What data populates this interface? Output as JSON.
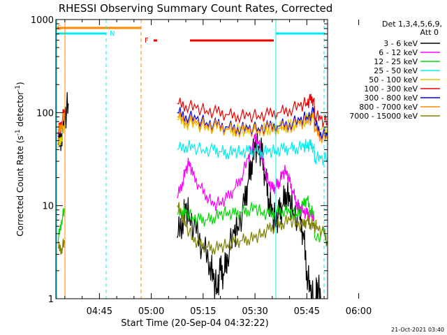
{
  "chart_data": {
    "type": "line",
    "title": "RHESSI Observing Summary Count Rates, Corrected",
    "xlabel": "Start Time (20-Sep-04 04:32:22)",
    "ylabel_main": "Corrected Count Rate (s",
    "ylabel_sup1": "-1",
    "ylabel_mid": " detector",
    "ylabel_sup2": "-1",
    "ylabel_end": ")",
    "footer": "21-Oct-2021 03:40",
    "xlim_min": [
      32.4,
      111
    ],
    "ylim": [
      1,
      1000
    ],
    "y_scale": "log",
    "x_ticks": [
      {
        "min": 45,
        "label": "04:45"
      },
      {
        "min": 60,
        "label": "05:00"
      },
      {
        "min": 75,
        "label": "05:15"
      },
      {
        "min": 90,
        "label": "05:30"
      },
      {
        "min": 105,
        "label": "05:45"
      },
      {
        "min": 120,
        "label": "06:00"
      }
    ],
    "y_ticks": [
      {
        "value": 1,
        "label": "1"
      },
      {
        "value": 10,
        "label": "10"
      },
      {
        "value": 100,
        "label": "100"
      },
      {
        "value": 1000,
        "label": "1000"
      }
    ],
    "legend": {
      "header1": "Det 1,3,4,5,6,9,",
      "header2": "Att 0",
      "items": [
        {
          "label": "3 - 6 keV",
          "color": "#000000"
        },
        {
          "label": "6 - 12 keV",
          "color": "#ff00ff"
        },
        {
          "label": "12 - 25 keV",
          "color": "#00dd00"
        },
        {
          "label": "25 - 50 keV",
          "color": "#00eeee"
        },
        {
          "label": "50 - 100 keV",
          "color": "#ddcc00"
        },
        {
          "label": "100 - 300 keV",
          "color": "#ee0000"
        },
        {
          "label": "300 - 800 keV",
          "color": "#0000ee"
        },
        {
          "label": "800 - 7000 keV",
          "color": "#ff8800"
        },
        {
          "label": "7000 - 15000 keV",
          "color": "#808000"
        }
      ]
    },
    "flags": [
      {
        "label": "S",
        "color": "#ff8800"
      },
      {
        "label": "N",
        "color": "#00eeee"
      },
      {
        "label": "F",
        "color": "#ee0000"
      }
    ],
    "series": [
      {
        "name": "3 - 6 keV",
        "color": "#000000",
        "segments": [
          [
            [
              33,
              45
            ],
            [
              34,
              60
            ],
            [
              35,
              90
            ],
            [
              36,
              125
            ]
          ],
          [
            [
              67.5,
              4.5
            ],
            [
              69,
              7
            ],
            [
              70,
              9
            ],
            [
              71,
              8
            ],
            [
              73,
              5
            ],
            [
              75,
              3.5
            ],
            [
              77,
              2.5
            ],
            [
              78,
              1.6
            ],
            [
              79,
              1.3
            ],
            [
              80,
              2
            ],
            [
              81,
              1.8
            ],
            [
              82,
              3
            ],
            [
              84,
              5
            ],
            [
              85,
              6
            ],
            [
              87,
              10
            ],
            [
              88,
              18
            ],
            [
              89,
              30
            ],
            [
              90,
              42
            ],
            [
              91,
              44
            ],
            [
              92,
              35
            ],
            [
              93,
              20
            ],
            [
              94,
              12
            ],
            [
              95,
              8
            ],
            [
              96,
              7
            ],
            [
              97,
              8
            ],
            [
              98,
              10
            ],
            [
              99,
              14
            ],
            [
              100,
              11
            ],
            [
              101,
              9
            ],
            [
              103,
              7
            ],
            [
              104,
              5
            ],
            [
              105,
              2
            ],
            [
              106,
              1.2
            ],
            [
              107,
              1
            ]
          ],
          [
            [
              107.6,
              1
            ],
            [
              108,
              1.5
            ],
            [
              109,
              1
            ]
          ]
        ]
      },
      {
        "name": "6 - 12 keV",
        "color": "#ff00ff",
        "segments": [
          [
            [
              33,
              55
            ],
            [
              34,
              75
            ],
            [
              35,
              100
            ]
          ],
          [
            [
              67.5,
              12
            ],
            [
              69,
              18
            ],
            [
              70,
              24
            ],
            [
              71,
              30
            ],
            [
              72,
              21
            ],
            [
              74,
              16
            ],
            [
              76,
              13
            ],
            [
              78,
              10
            ],
            [
              80,
              11
            ],
            [
              82,
              12
            ],
            [
              84,
              15
            ],
            [
              86,
              20
            ],
            [
              88,
              32
            ],
            [
              89,
              40
            ],
            [
              90,
              52
            ],
            [
              91,
              48
            ],
            [
              92,
              35
            ],
            [
              93,
              22
            ],
            [
              94,
              18
            ],
            [
              95,
              15
            ],
            [
              96,
              16
            ],
            [
              97,
              18
            ],
            [
              98,
              22
            ],
            [
              99,
              24
            ],
            [
              100,
              18
            ],
            [
              101,
              14
            ],
            [
              102,
              11
            ],
            [
              103,
              9
            ],
            [
              104,
              9
            ],
            [
              105,
              8
            ],
            [
              106,
              8
            ],
            [
              107,
              8
            ]
          ]
        ]
      },
      {
        "name": "12 - 25 keV",
        "color": "#00dd00",
        "segments": [
          [
            [
              33,
              4
            ],
            [
              34,
              7
            ],
            [
              35,
              9
            ]
          ],
          [
            [
              67.5,
              8
            ],
            [
              69,
              9
            ],
            [
              70,
              8.5
            ],
            [
              72,
              7.5
            ],
            [
              74,
              7
            ],
            [
              76,
              7
            ],
            [
              78,
              7.5
            ],
            [
              80,
              8
            ],
            [
              82,
              8.5
            ],
            [
              84,
              8
            ],
            [
              86,
              8.5
            ],
            [
              88,
              9
            ],
            [
              90,
              9.5
            ],
            [
              92,
              8.5
            ],
            [
              94,
              8
            ],
            [
              96,
              8.5
            ],
            [
              98,
              9
            ],
            [
              100,
              8.5
            ],
            [
              102,
              8
            ],
            [
              104,
              10
            ],
            [
              105,
              12
            ],
            [
              106,
              9
            ],
            [
              107,
              8
            ],
            [
              107.3,
              4.5
            ],
            [
              110,
              5
            ],
            [
              111,
              4
            ]
          ]
        ]
      },
      {
        "name": "25 - 50 keV",
        "color": "#00eeee",
        "segments": [
          [
            [
              67.5,
              40
            ],
            [
              70,
              44
            ],
            [
              72,
              42
            ],
            [
              75,
              40
            ],
            [
              78,
              39
            ],
            [
              80,
              38
            ],
            [
              82,
              37
            ],
            [
              84,
              38
            ],
            [
              86,
              38
            ],
            [
              88,
              38
            ],
            [
              90,
              39
            ],
            [
              92,
              38
            ],
            [
              94,
              38
            ],
            [
              96,
              39
            ],
            [
              98,
              40
            ],
            [
              100,
              41
            ],
            [
              102,
              42
            ],
            [
              104,
              43
            ],
            [
              105,
              45
            ],
            [
              106,
              44
            ],
            [
              107,
              43
            ],
            [
              107.3,
              33
            ],
            [
              109,
              32
            ],
            [
              111,
              32
            ]
          ]
        ]
      },
      {
        "name": "50 - 100 keV",
        "color": "#ddcc00",
        "segments": [
          [
            [
              33,
              42
            ],
            [
              34,
              55
            ],
            [
              35,
              70
            ]
          ],
          [
            [
              67.5,
              85
            ],
            [
              70,
              78
            ],
            [
              73,
              73
            ],
            [
              76,
              70
            ],
            [
              79,
              68
            ],
            [
              82,
              66
            ],
            [
              84,
              65
            ],
            [
              86,
              65
            ],
            [
              88,
              65
            ],
            [
              90,
              65
            ],
            [
              92,
              66
            ],
            [
              94,
              67
            ],
            [
              96,
              68
            ],
            [
              98,
              70
            ],
            [
              100,
              72
            ],
            [
              102,
              75
            ],
            [
              104,
              80
            ],
            [
              106,
              90
            ],
            [
              107,
              95
            ],
            [
              107.3,
              70
            ],
            [
              109,
              66
            ],
            [
              111,
              65
            ]
          ]
        ]
      },
      {
        "name": "100 - 300 keV",
        "color": "#ee0000",
        "segments": [
          [
            [
              33,
              60
            ],
            [
              34,
              80
            ],
            [
              35,
              105
            ]
          ],
          [
            [
              67.5,
              125
            ],
            [
              70,
              120
            ],
            [
              73,
              112
            ],
            [
              76,
              105
            ],
            [
              79,
              100
            ],
            [
              82,
              95
            ],
            [
              85,
              93
            ],
            [
              88,
              92
            ],
            [
              91,
              93
            ],
            [
              94,
              95
            ],
            [
              97,
              100
            ],
            [
              100,
              108
            ],
            [
              103,
              118
            ],
            [
              105,
              128
            ],
            [
              106,
              135
            ],
            [
              107,
              140
            ],
            [
              107.3,
              95
            ],
            [
              109,
              85
            ],
            [
              111,
              78
            ]
          ]
        ]
      },
      {
        "name": "300 - 800 keV",
        "color": "#0000ee",
        "segments": [
          [
            [
              67.5,
              100
            ],
            [
              70,
              93
            ],
            [
              73,
              85
            ],
            [
              76,
              78
            ],
            [
              79,
              73
            ],
            [
              82,
              70
            ],
            [
              85,
              68
            ],
            [
              88,
              67
            ],
            [
              91,
              68
            ],
            [
              94,
              69
            ],
            [
              97,
              72
            ],
            [
              100,
              76
            ],
            [
              103,
              82
            ],
            [
              105,
              90
            ],
            [
              107,
              100
            ],
            [
              107.3,
              75
            ],
            [
              109,
              62
            ],
            [
              111,
              55
            ]
          ]
        ]
      },
      {
        "name": "800 - 7000 keV",
        "color": "#ff8800",
        "segments": [
          [
            [
              33,
              58
            ],
            [
              34,
              75
            ],
            [
              35,
              95
            ]
          ],
          [
            [
              67.5,
              90
            ],
            [
              70,
              85
            ],
            [
              73,
              78
            ],
            [
              76,
              74
            ],
            [
              79,
              70
            ],
            [
              82,
              67
            ],
            [
              85,
              65
            ],
            [
              88,
              64
            ],
            [
              91,
              65
            ],
            [
              94,
              66
            ],
            [
              97,
              68
            ],
            [
              100,
              72
            ],
            [
              103,
              76
            ],
            [
              105,
              82
            ],
            [
              107,
              88
            ],
            [
              107.3,
              65
            ],
            [
              109,
              56
            ],
            [
              111,
              52
            ]
          ]
        ]
      },
      {
        "name": "7000 - 15000 keV",
        "color": "#808000",
        "segments": [
          [
            [
              33,
              3.5
            ],
            [
              34,
              3.5
            ],
            [
              35,
              4
            ]
          ],
          [
            [
              67.5,
              10
            ],
            [
              69,
              8
            ],
            [
              70,
              6
            ],
            [
              72,
              4.5
            ],
            [
              74,
              3.8
            ],
            [
              76,
              3.6
            ],
            [
              78,
              3.5
            ],
            [
              80,
              3.6
            ],
            [
              82,
              3.8
            ],
            [
              84,
              4
            ],
            [
              86,
              4.2
            ],
            [
              88,
              4.4
            ],
            [
              90,
              4.5
            ],
            [
              92,
              5
            ],
            [
              94,
              5.5
            ],
            [
              96,
              6
            ],
            [
              98,
              6.5
            ],
            [
              100,
              7
            ],
            [
              102,
              6.5
            ],
            [
              104,
              6
            ],
            [
              105,
              7
            ],
            [
              106,
              6.5
            ],
            [
              107,
              6
            ],
            [
              108,
              6
            ],
            [
              110,
              5
            ],
            [
              111,
              4
            ]
          ]
        ]
      }
    ]
  }
}
